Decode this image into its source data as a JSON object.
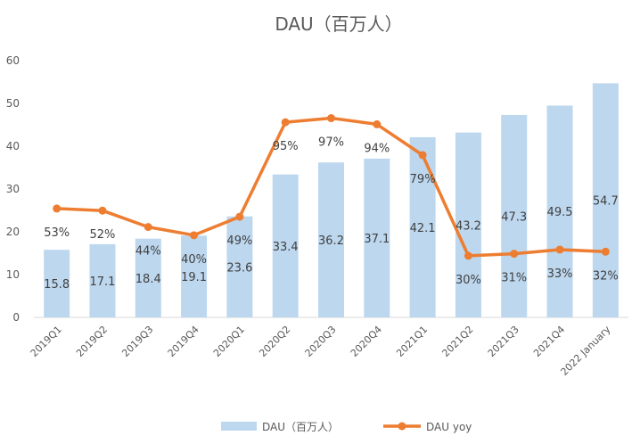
{
  "chart_data": {
    "type": "bar",
    "title": "DAU（百万人）",
    "categories": [
      "2019Q1",
      "2019Q2",
      "2019Q3",
      "2019Q4",
      "2020Q1",
      "2020Q2",
      "2020Q3",
      "2020Q4",
      "2021Q1",
      "2021Q2",
      "2021Q3",
      "2021Q4",
      "2022 January"
    ],
    "ylim": [
      0,
      60
    ],
    "yticks": [
      0,
      10,
      20,
      30,
      40,
      50,
      60
    ],
    "y2lim": [
      0,
      1.25
    ],
    "grid": false,
    "legend_position": "bottom",
    "series": [
      {
        "name": "DAU（百万人）",
        "type": "bar",
        "axis": "left",
        "color": "#bdd7ee",
        "values": [
          15.8,
          17.1,
          18.4,
          19.1,
          23.6,
          33.4,
          36.2,
          37.1,
          42.1,
          43.2,
          47.3,
          49.5,
          54.7
        ],
        "labels": [
          "15.8",
          "17.1",
          "18.4",
          "19.1",
          "23.6",
          "33.4",
          "36.2",
          "37.1",
          "42.1",
          "43.2",
          "47.3",
          "49.5",
          "54.7"
        ]
      },
      {
        "name": "DAU yoy",
        "type": "line",
        "axis": "right",
        "color": "#ed7d31",
        "values": [
          0.53,
          0.52,
          0.44,
          0.4,
          0.49,
          0.95,
          0.97,
          0.94,
          0.79,
          0.3,
          0.31,
          0.33,
          0.32
        ],
        "labels": [
          "53%",
          "52%",
          "44%",
          "40%",
          "49%",
          "95%",
          "97%",
          "94%",
          "79%",
          "30%",
          "31%",
          "33%",
          "32%"
        ]
      }
    ]
  }
}
